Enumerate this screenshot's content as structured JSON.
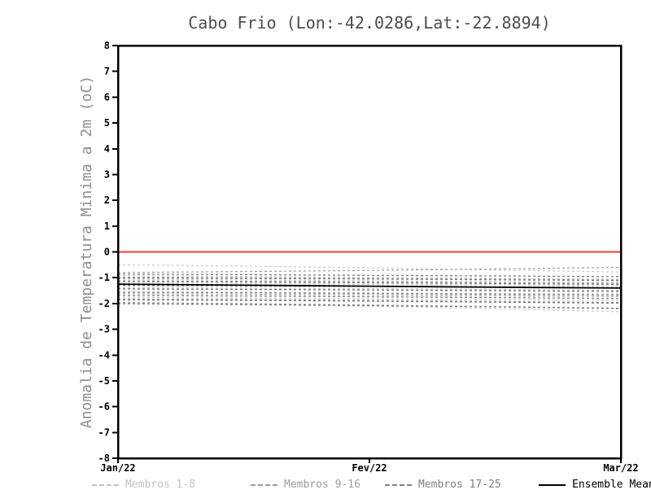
{
  "chart_data": {
    "type": "line",
    "title": "Cabo Frio (Lon:-42.0286,Lat:-22.8894)",
    "ylabel": "Anomalia de Temperatura Minima a 2m (oC)",
    "xlabel": "",
    "ylim": [
      -8,
      8
    ],
    "ytick_step": 1,
    "y_ticklabels": [
      "8",
      "7",
      "6",
      "5",
      "4",
      "3",
      "2",
      "1",
      "0",
      "-1",
      "-2",
      "-3",
      "-4",
      "-5",
      "-6",
      "-7",
      "-8"
    ],
    "x_ticklabels": [
      "Jan/22",
      "Fev/22",
      "Mar/22"
    ],
    "x_tick_positions": [
      0,
      0.5,
      1
    ],
    "x_normalized": [
      0,
      0.25,
      0.5,
      0.75,
      1
    ],
    "grid": false,
    "axis_color": "#000000",
    "zero_line": {
      "value": 0,
      "color": "#fa3c3c"
    },
    "groups": [
      {
        "name": "Membros 1-8",
        "color": "#c9c9c9",
        "style": "dashed",
        "members": [
          [
            -0.5,
            -0.55,
            -0.62,
            -0.7,
            -0.78
          ],
          [
            -0.92,
            -0.95,
            -0.99,
            -1.02,
            -1.06
          ],
          [
            -1.06,
            -1.09,
            -1.12,
            -1.15,
            -1.18
          ],
          [
            -1.22,
            -1.24,
            -1.26,
            -1.28,
            -1.31
          ],
          [
            -1.38,
            -1.4,
            -1.42,
            -1.45,
            -1.48
          ],
          [
            -1.55,
            -1.57,
            -1.59,
            -1.61,
            -1.63
          ],
          [
            -1.76,
            -1.79,
            -1.82,
            -1.85,
            -1.89
          ],
          [
            -2.02,
            -2.05,
            -2.1,
            -2.2,
            -2.32
          ]
        ]
      },
      {
        "name": "Membros 9-16",
        "color": "#9e9e9e",
        "style": "dashed",
        "members": [
          [
            -0.8,
            -0.76,
            -0.72,
            -0.66,
            -0.6
          ],
          [
            -0.98,
            -1.0,
            -1.03,
            -1.06,
            -1.09
          ],
          [
            -1.12,
            -1.14,
            -1.16,
            -1.19,
            -1.22
          ],
          [
            -1.28,
            -1.3,
            -1.33,
            -1.35,
            -1.38
          ],
          [
            -1.44,
            -1.46,
            -1.48,
            -1.51,
            -1.54
          ],
          [
            -1.62,
            -1.64,
            -1.67,
            -1.7,
            -1.73
          ],
          [
            -1.82,
            -1.85,
            -1.88,
            -1.92,
            -1.96
          ],
          [
            -1.96,
            -2.0,
            -2.06,
            -2.12,
            -2.18
          ]
        ]
      },
      {
        "name": "Membros 17-25",
        "color": "#747474",
        "style": "dashed",
        "members": [
          [
            -0.86,
            -0.88,
            -0.91,
            -0.93,
            -0.96
          ],
          [
            -1.01,
            -1.03,
            -1.05,
            -1.08,
            -1.11
          ],
          [
            -1.15,
            -1.17,
            -1.2,
            -1.23,
            -1.26
          ],
          [
            -1.3,
            -1.32,
            -1.34,
            -1.37,
            -1.4
          ],
          [
            -1.43,
            -1.45,
            -1.47,
            -1.5,
            -1.53
          ],
          [
            -1.56,
            -1.58,
            -1.61,
            -1.64,
            -1.67
          ],
          [
            -1.69,
            -1.71,
            -1.74,
            -1.77,
            -1.81
          ],
          [
            -1.86,
            -1.88,
            -1.91,
            -1.95,
            -1.99
          ],
          [
            -2.0,
            -2.04,
            -2.08,
            -2.13,
            -2.2
          ]
        ]
      }
    ],
    "mean": {
      "name": "Ensemble Mean",
      "color": "#000000",
      "style": "solid",
      "values": [
        -1.25,
        -1.29,
        -1.33,
        -1.37,
        -1.4
      ]
    },
    "legend": [
      {
        "label": "Membros 1-8",
        "color": "#c3c3c3",
        "style": "dashed"
      },
      {
        "label": "Membros 9-16",
        "color": "#9c9c9c",
        "style": "dashed"
      },
      {
        "label": "Membros 17-25",
        "color": "#828282",
        "style": "dashed"
      },
      {
        "label": "Ensemble Mean",
        "color": "#000000",
        "style": "solid"
      }
    ]
  }
}
